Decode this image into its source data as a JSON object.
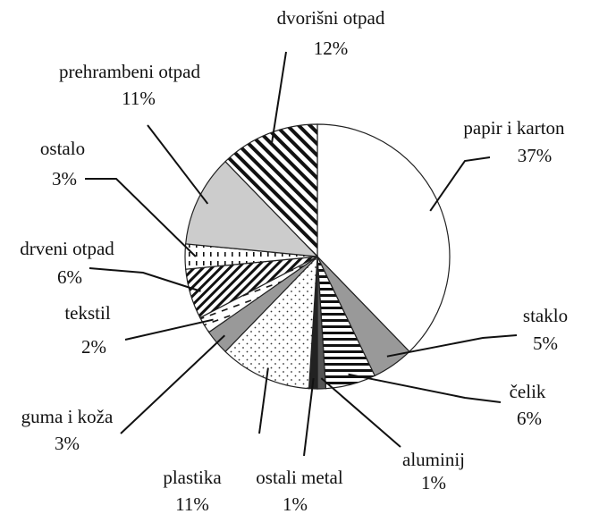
{
  "chart_data": {
    "type": "pie",
    "categories": [
      "papir i karton",
      "staklo",
      "čelik",
      "aluminij",
      "ostali metal",
      "plastika",
      "guma i koža",
      "tekstil",
      "drveni otpad",
      "ostalo",
      "prehrambeni otpad",
      "dvorišni otpad"
    ],
    "values": [
      37,
      5,
      6,
      1,
      1,
      11,
      3,
      2,
      6,
      3,
      11,
      12
    ],
    "value_labels": [
      "37%",
      "5%",
      "6%",
      "1%",
      "1%",
      "11%",
      "3%",
      "2%",
      "6%",
      "3%",
      "11%",
      "12%"
    ],
    "patterns": [
      "blank",
      "gray",
      "hlines",
      "dark",
      "black",
      "dots",
      "gray",
      "dashes",
      "hatch",
      "vdash",
      "light",
      "stripes"
    ]
  }
}
